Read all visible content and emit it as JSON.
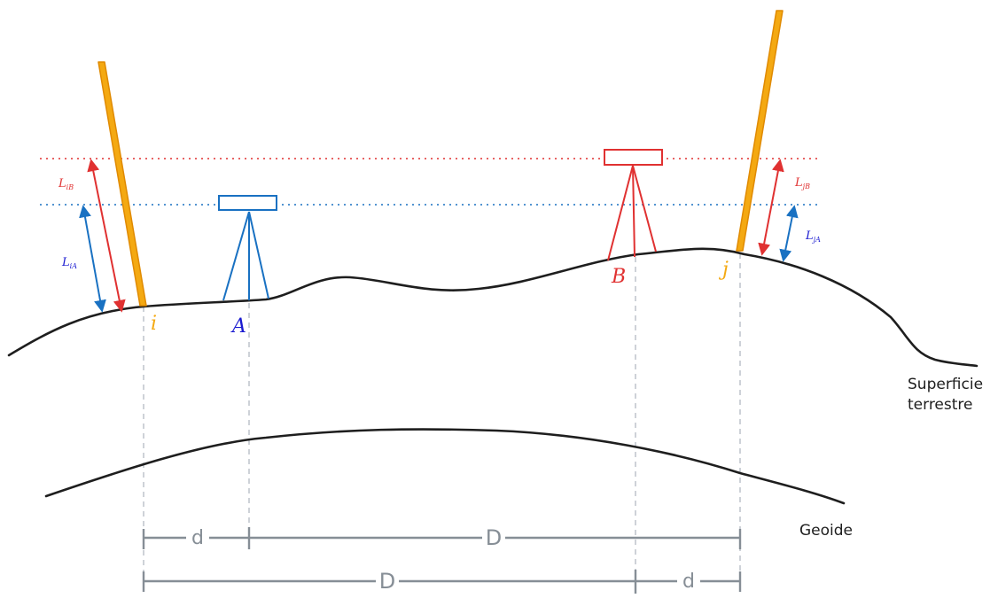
{
  "labels": {
    "i": "i",
    "j": "j",
    "A": "A",
    "B": "B",
    "d": "d",
    "D": "D",
    "surface_line1": "Superficie",
    "surface_line2": "terrestre",
    "geoide": "Geoide"
  },
  "readings": {
    "LiB": {
      "main": "L",
      "sub": "iB"
    },
    "LiA": {
      "main": "L",
      "sub": "iA"
    },
    "LjB": {
      "main": "L",
      "sub": "jB"
    },
    "LjA": {
      "main": "L",
      "sub": "jA"
    }
  },
  "colors": {
    "rod": "#f4a912",
    "rod_edge": "#e08a00",
    "instrument_A": "#1971c2",
    "instrument_B": "#e03131",
    "label_A": "#1a1ad0",
    "terrain": "#1e1e1e",
    "dimension": "#868e96",
    "guide": "#adb5bd"
  }
}
